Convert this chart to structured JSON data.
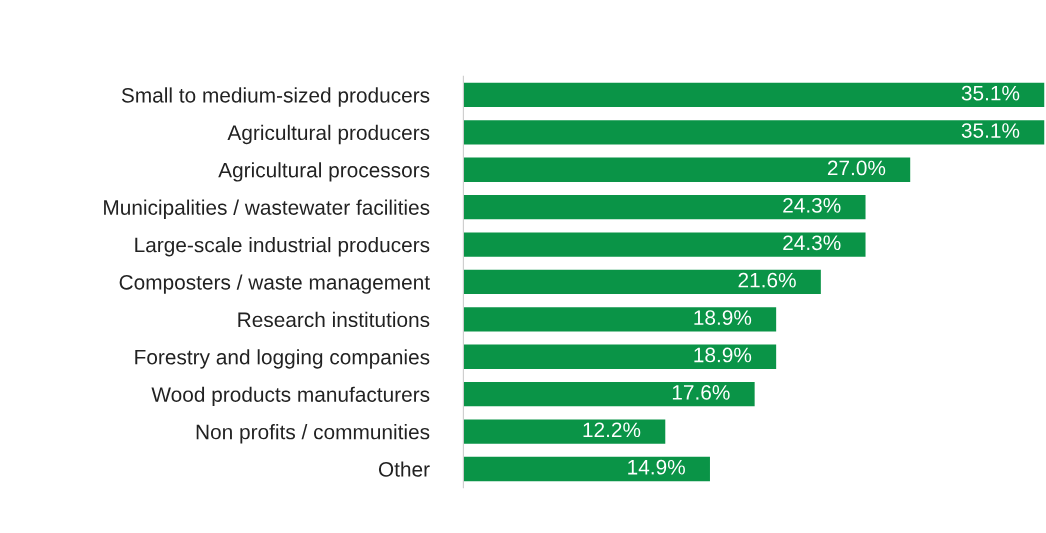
{
  "chart_data": {
    "type": "bar",
    "orientation": "horizontal",
    "categories": [
      "Small to medium-sized producers",
      "Agricultural producers",
      "Agricultural processors",
      "Municipalities / wastewater facilities",
      "Large-scale industrial producers",
      "Composters / waste management",
      "Research institutions",
      "Forestry and logging companies",
      "Wood products manufacturers",
      "Non profits / communities",
      "Other"
    ],
    "values": [
      35.1,
      35.1,
      27.0,
      24.3,
      24.3,
      21.6,
      18.9,
      18.9,
      17.6,
      12.2,
      14.9
    ],
    "value_labels": [
      "35.1%",
      "35.1%",
      "27.0%",
      "24.3%",
      "24.3%",
      "21.6%",
      "18.9%",
      "18.9%",
      "17.6%",
      "12.2%",
      "14.9%"
    ],
    "color": "#0a9447",
    "grid": false,
    "legend": false
  }
}
